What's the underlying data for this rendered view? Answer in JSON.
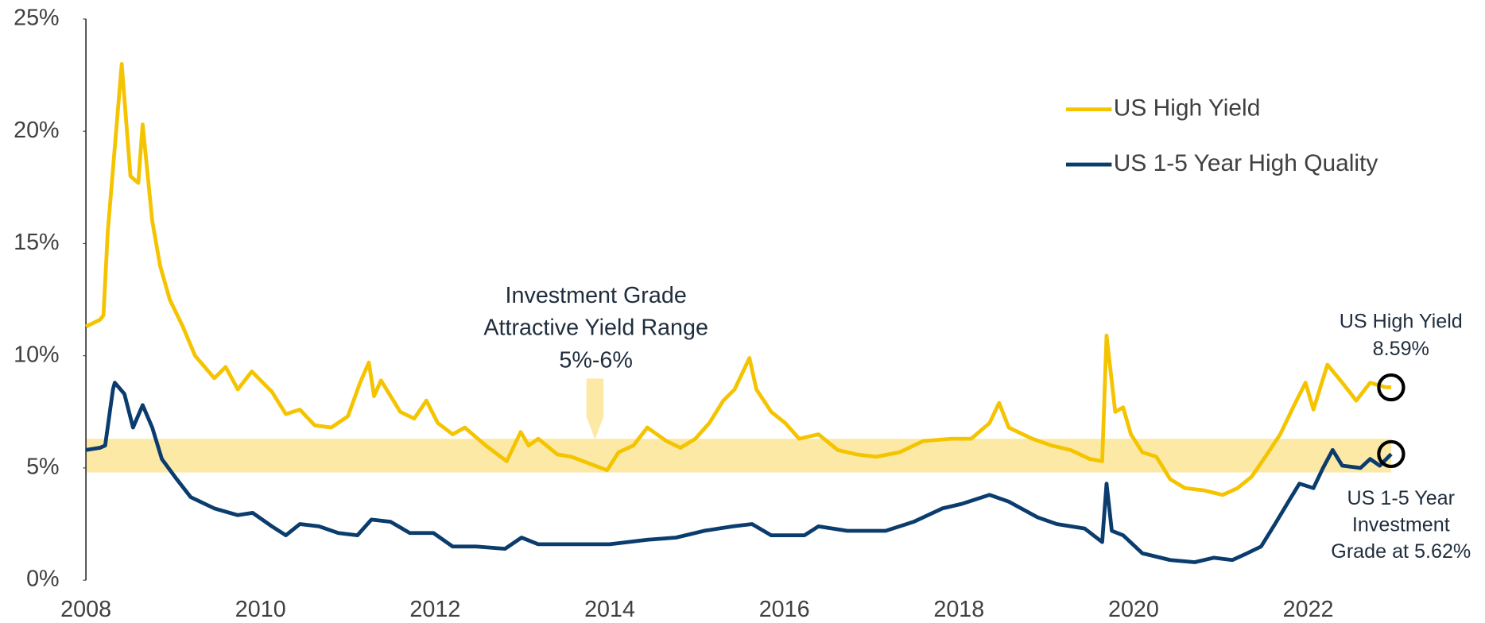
{
  "chart_data": {
    "type": "line",
    "xlim": [
      2008,
      2024
    ],
    "ylim": [
      0,
      25
    ],
    "xticks": [
      2008,
      2010,
      2012,
      2014,
      2016,
      2018,
      2020,
      2022
    ],
    "yticks": [
      {
        "value": 0,
        "label": "0%"
      },
      {
        "value": 5,
        "label": "5%"
      },
      {
        "value": 10,
        "label": "10%"
      },
      {
        "value": 15,
        "label": "15%"
      },
      {
        "value": 20,
        "label": "20%"
      },
      {
        "value": 25,
        "label": "25%"
      }
    ],
    "band": {
      "range": [
        4.8,
        6.3
      ],
      "color": "#fde9a6"
    },
    "series": [
      {
        "name": "US High Yield",
        "color": "#f5c400",
        "x": [
          2008.0,
          2008.16,
          2008.2,
          2008.25,
          2008.41,
          2008.51,
          2008.6,
          2008.65,
          2008.76,
          2008.85,
          2008.96,
          2009.11,
          2009.25,
          2009.47,
          2009.6,
          2009.74,
          2009.9,
          2010.13,
          2010.29,
          2010.45,
          2010.62,
          2010.81,
          2011.0,
          2011.14,
          2011.24,
          2011.3,
          2011.38,
          2011.6,
          2011.76,
          2011.9,
          2012.03,
          2012.2,
          2012.34,
          2012.58,
          2012.82,
          2012.98,
          2013.07,
          2013.18,
          2013.4,
          2013.56,
          2013.83,
          2013.97,
          2014.1,
          2014.27,
          2014.43,
          2014.65,
          2014.81,
          2014.98,
          2015.14,
          2015.3,
          2015.43,
          2015.6,
          2015.68,
          2015.85,
          2016.01,
          2016.17,
          2016.39,
          2016.61,
          2016.83,
          2017.05,
          2017.32,
          2017.59,
          2017.92,
          2018.14,
          2018.35,
          2018.46,
          2018.57,
          2018.84,
          2019.06,
          2019.28,
          2019.5,
          2019.64,
          2019.69,
          2019.79,
          2019.88,
          2019.97,
          2020.1,
          2020.26,
          2020.42,
          2020.59,
          2020.81,
          2021.02,
          2021.19,
          2021.35,
          2021.51,
          2021.68,
          2021.84,
          2021.97,
          2022.06,
          2022.22,
          2022.39,
          2022.55,
          2022.71,
          2022.88,
          2022.95
        ],
        "values": [
          11.3,
          11.6,
          11.8,
          15.5,
          23.0,
          18.0,
          17.7,
          20.3,
          16.0,
          14.0,
          12.5,
          11.3,
          10.0,
          9.0,
          9.5,
          8.5,
          9.3,
          8.4,
          7.4,
          7.6,
          6.9,
          6.8,
          7.3,
          8.8,
          9.7,
          8.2,
          8.9,
          7.5,
          7.2,
          8.0,
          7.0,
          6.5,
          6.8,
          6.0,
          5.3,
          6.6,
          6.0,
          6.3,
          5.6,
          5.5,
          5.1,
          4.9,
          5.7,
          6.0,
          6.8,
          6.2,
          5.9,
          6.3,
          7.0,
          8.0,
          8.5,
          9.9,
          8.5,
          7.5,
          7.0,
          6.3,
          6.5,
          5.8,
          5.6,
          5.5,
          5.7,
          6.2,
          6.3,
          6.3,
          7.0,
          7.9,
          6.8,
          6.3,
          6.0,
          5.8,
          5.4,
          5.3,
          10.9,
          7.5,
          7.7,
          6.5,
          5.7,
          5.5,
          4.5,
          4.1,
          4.0,
          3.8,
          4.1,
          4.6,
          5.5,
          6.5,
          7.8,
          8.8,
          7.6,
          9.6,
          8.8,
          8.0,
          8.8,
          8.6,
          8.59
        ]
      },
      {
        "name": "US 1-5 Year High Quality",
        "color": "#0b3c6e",
        "x": [
          2008.0,
          2008.16,
          2008.22,
          2008.31,
          2008.33,
          2008.44,
          2008.54,
          2008.65,
          2008.76,
          2008.87,
          2009.04,
          2009.2,
          2009.47,
          2009.74,
          2009.91,
          2010.13,
          2010.29,
          2010.45,
          2010.67,
          2010.89,
          2011.11,
          2011.27,
          2011.49,
          2011.71,
          2011.98,
          2012.2,
          2012.47,
          2012.8,
          2012.99,
          2013.18,
          2013.56,
          2014.0,
          2014.43,
          2014.76,
          2015.08,
          2015.41,
          2015.63,
          2015.85,
          2016.23,
          2016.39,
          2016.72,
          2017.16,
          2017.48,
          2017.81,
          2018.03,
          2018.35,
          2018.57,
          2018.9,
          2019.12,
          2019.44,
          2019.64,
          2019.69,
          2019.75,
          2019.88,
          2020.1,
          2020.42,
          2020.7,
          2020.92,
          2021.13,
          2021.3,
          2021.46,
          2021.62,
          2021.79,
          2021.9,
          2022.06,
          2022.17,
          2022.28,
          2022.39,
          2022.6,
          2022.71,
          2022.82,
          2022.95
        ],
        "values": [
          5.8,
          5.9,
          6.0,
          8.5,
          8.8,
          8.3,
          6.8,
          7.8,
          6.8,
          5.4,
          4.5,
          3.7,
          3.2,
          2.9,
          3.0,
          2.4,
          2.0,
          2.5,
          2.4,
          2.1,
          2.0,
          2.7,
          2.6,
          2.1,
          2.1,
          1.5,
          1.5,
          1.4,
          1.9,
          1.6,
          1.6,
          1.6,
          1.8,
          1.9,
          2.2,
          2.4,
          2.5,
          2.0,
          2.0,
          2.4,
          2.2,
          2.2,
          2.6,
          3.2,
          3.4,
          3.8,
          3.5,
          2.8,
          2.5,
          2.3,
          1.7,
          4.3,
          2.2,
          2.0,
          1.2,
          0.9,
          0.8,
          1.0,
          0.9,
          1.2,
          1.5,
          2.5,
          3.6,
          4.3,
          4.1,
          5.0,
          5.8,
          5.1,
          5.0,
          5.4,
          5.1,
          5.62
        ]
      }
    ],
    "annotations": [
      {
        "lines": [
          "Investment Grade",
          "Attractive Yield Range",
          "5%-6%"
        ]
      },
      {
        "lines": [
          "US High Yield",
          "8.59%"
        ]
      },
      {
        "lines": [
          "US 1-5 Year",
          "Investment",
          "Grade at 5.62%"
        ]
      }
    ]
  }
}
